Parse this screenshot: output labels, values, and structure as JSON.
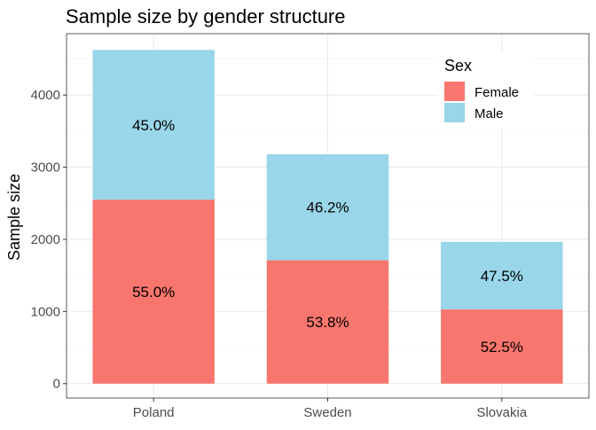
{
  "chart_data": {
    "type": "bar",
    "stacked": true,
    "title": "Sample size by gender structure",
    "xlabel": "",
    "ylabel": "Sample size",
    "categories": [
      "Poland",
      "Sweden",
      "Slovakia"
    ],
    "series": [
      {
        "name": "Female",
        "color": "#F8766D",
        "values": [
          2550,
          1710,
          1030
        ],
        "labels": [
          "55.0%",
          "53.8%",
          "52.5%"
        ]
      },
      {
        "name": "Male",
        "color": "#99D6EA",
        "values": [
          2075,
          1470,
          935
        ],
        "labels": [
          "45.0%",
          "46.2%",
          "47.5%"
        ]
      }
    ],
    "ylim": [
      -200,
      4850
    ],
    "yticks": [
      0,
      1000,
      2000,
      3000,
      4000
    ],
    "legend": {
      "title": "Sex",
      "position": "top-right"
    },
    "grid": true
  }
}
